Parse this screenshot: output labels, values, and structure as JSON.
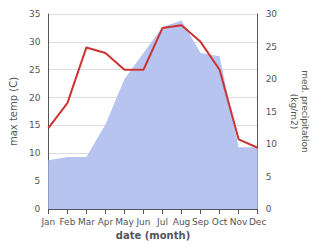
{
  "chart_data": {
    "type": "line",
    "xlabel": "date (month)",
    "ylabel": "max temp (C)",
    "y2label": "med. precipitation\n(kg/m2)",
    "categories": [
      "Jan",
      "Feb",
      "Mar",
      "Apr",
      "May",
      "Jun",
      "Jul",
      "Aug",
      "Sep",
      "Oct",
      "Nov",
      "Dec"
    ],
    "series": [
      {
        "type": "area",
        "color": "#b8c4f0",
        "axis": "y2",
        "values": [
          7.5,
          8.0,
          8.0,
          13.0,
          20.0,
          24.0,
          28.0,
          29.0,
          24.0,
          23.5,
          9.5,
          9.5
        ]
      },
      {
        "type": "line",
        "color": "#cc3333",
        "values": [
          14.5,
          19.0,
          29.0,
          28.0,
          25.0,
          25.0,
          32.5,
          33.0,
          30.0,
          25.0,
          12.5,
          11.0
        ]
      }
    ],
    "ylim": [
      0,
      35
    ],
    "yticks": [
      0,
      5,
      10,
      15,
      20,
      25,
      30,
      35
    ],
    "y2lim": [
      0,
      30
    ],
    "y2ticks": [
      0,
      5,
      10,
      15,
      20,
      25,
      30
    ],
    "grid": true
  }
}
